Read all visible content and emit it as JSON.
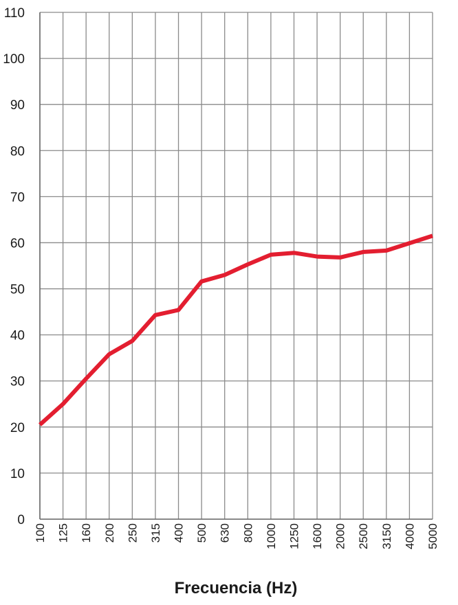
{
  "chart_data": {
    "type": "line",
    "title": "",
    "xlabel": "Frecuencia (Hz)",
    "ylabel": "",
    "categories": [
      "100",
      "125",
      "160",
      "200",
      "250",
      "315",
      "400",
      "500",
      "630",
      "800",
      "1000",
      "1250",
      "1600",
      "2000",
      "2500",
      "3150",
      "4000",
      "5000"
    ],
    "series": [
      {
        "values": [
          20.5,
          25,
          30.5,
          35.8,
          38.7,
          44.3,
          45.4,
          51.6,
          53,
          55.3,
          57.4,
          57.8,
          57,
          56.8,
          58,
          58.3,
          59.9,
          61.5
        ]
      }
    ],
    "yticks": [
      0,
      10,
      20,
      30,
      40,
      50,
      60,
      70,
      80,
      90,
      100,
      110
    ],
    "ylim": [
      0,
      110
    ],
    "grid": true,
    "colors": {
      "line": "#e31e30",
      "grid": "#8a8a8a",
      "text": "#1a1a1a"
    }
  }
}
